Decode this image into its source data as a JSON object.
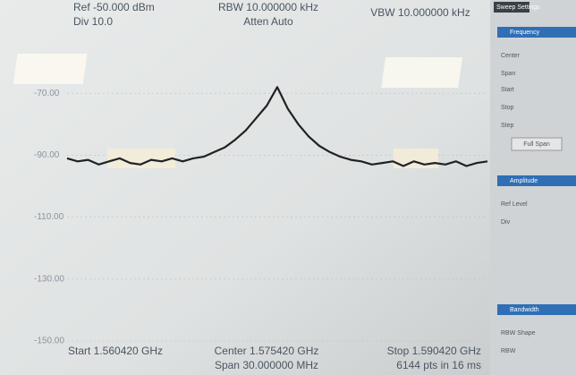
{
  "chart_data": {
    "type": "line",
    "annotations": [
      "Ref -50.000 dBm",
      "Div 10.0",
      "RBW 10.000000 kHz",
      "Atten Auto",
      "VBW 10.000000 kHz",
      "Start 1.560420 GHz",
      "Center 1.575420 GHz",
      "Span 30.000000 MHz",
      "Stop 1.590420 GHz",
      "6144 pts in 16 ms"
    ],
    "x": [
      1.56042,
      1.56117,
      1.56192,
      1.56267,
      1.56342,
      1.56417,
      1.56492,
      1.56567,
      1.56642,
      1.56717,
      1.56792,
      1.56867,
      1.56942,
      1.57017,
      1.57092,
      1.57167,
      1.57242,
      1.57317,
      1.57392,
      1.57467,
      1.57542,
      1.57617,
      1.57692,
      1.57767,
      1.57842,
      1.57917,
      1.57992,
      1.58067,
      1.58142,
      1.58217,
      1.58292,
      1.58367,
      1.58442,
      1.58517,
      1.58592,
      1.58667,
      1.58742,
      1.58817,
      1.58892,
      1.58967,
      1.59042
    ],
    "values": [
      -91,
      -92,
      -91.5,
      -93,
      -92,
      -91,
      -92.5,
      -93,
      -91.5,
      -92,
      -91,
      -92,
      -91,
      -90.5,
      -89,
      -87.5,
      -85,
      -82,
      -78,
      -74,
      -68,
      -75,
      -80,
      -84,
      -87,
      -89,
      -90.5,
      -91.5,
      -92,
      -93,
      -92.5,
      -92,
      -93.5,
      -92,
      -93,
      -92.5,
      -93,
      -92,
      -93.5,
      -92.5,
      -92
    ],
    "color": "#1e2226",
    "xlim": [
      1.56042,
      1.59042
    ],
    "ylim": [
      -150,
      -50
    ],
    "yticks": [
      {
        "value": -70,
        "label": "-70.00"
      },
      {
        "value": -90,
        "label": "-90.00"
      },
      {
        "value": -110,
        "label": "-110.00"
      },
      {
        "value": -130,
        "label": "-130.00"
      },
      {
        "value": -150,
        "label": "-150.00"
      }
    ],
    "grid": true
  },
  "side_panel": {
    "tab": "Sweep Settings",
    "sections": [
      {
        "title": "Frequency",
        "items": [
          "Center",
          "Span",
          "Start",
          "Stop",
          "Step",
          "Full Span"
        ]
      },
      {
        "title": "Amplitude",
        "items": [
          "Ref Level",
          "Div"
        ]
      },
      {
        "title": "Bandwidth",
        "items": [
          "RBW Shape",
          "RBW"
        ]
      }
    ]
  }
}
